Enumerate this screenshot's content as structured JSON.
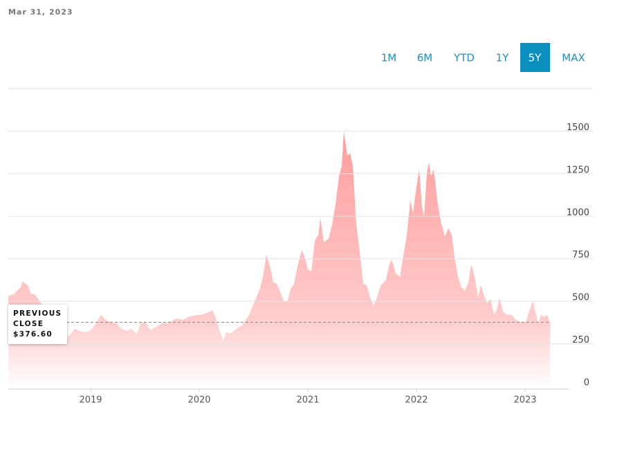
{
  "header": {
    "date": "Mar 31, 2023",
    "ranges": [
      "1M",
      "6M",
      "YTD",
      "1Y",
      "5Y",
      "MAX"
    ],
    "active_range": 4
  },
  "chart_data": {
    "type": "area",
    "color": "#ff9c9c",
    "x": [
      2018.242,
      2018.293,
      2018.357,
      2018.369,
      2018.42,
      2018.452,
      2018.484,
      2018.516,
      2018.548,
      2018.58,
      2018.624,
      2018.675,
      2018.726,
      2018.771,
      2018.803,
      2018.854,
      2018.898,
      2018.943,
      2018.994,
      2019.038,
      2019.096,
      2019.134,
      2019.185,
      2019.236,
      2019.287,
      2019.331,
      2019.376,
      2019.427,
      2019.459,
      2019.503,
      2019.548,
      2019.599,
      2019.662,
      2019.726,
      2019.79,
      2019.854,
      2019.898,
      2019.949,
      2020.013,
      2020.076,
      2020.121,
      2020.153,
      2020.191,
      2020.223,
      2020.248,
      2020.287,
      2020.344,
      2020.395,
      2020.459,
      2020.51,
      2020.554,
      2020.586,
      2020.618,
      2020.65,
      2020.682,
      2020.713,
      2020.745,
      2020.777,
      2020.809,
      2020.841,
      2020.873,
      2020.904,
      2020.943,
      2020.968,
      2021.0,
      2021.032,
      2021.064,
      2021.096,
      2021.115,
      2021.146,
      2021.191,
      2021.223,
      2021.255,
      2021.287,
      2021.312,
      2021.331,
      2021.363,
      2021.389,
      2021.414,
      2021.446,
      2021.478,
      2021.51,
      2021.541,
      2021.573,
      2021.605,
      2021.637,
      2021.669,
      2021.72,
      2021.745,
      2021.771,
      2021.809,
      2021.847,
      2021.873,
      2021.911,
      2021.943,
      2021.968,
      2022.0,
      2022.025,
      2022.051,
      2022.07,
      2022.096,
      2022.115,
      2022.134,
      2022.159,
      2022.191,
      2022.223,
      2022.261,
      2022.293,
      2022.325,
      2022.35,
      2022.382,
      2022.414,
      2022.446,
      2022.478,
      2022.503,
      2022.535,
      2022.567,
      2022.592,
      2022.618,
      2022.65,
      2022.682,
      2022.713,
      2022.739,
      2022.764,
      2022.796,
      2022.834,
      2022.879,
      2022.911,
      2022.955,
      2023.006,
      2023.038,
      2023.07,
      2023.102,
      2023.121,
      2023.146,
      2023.178,
      2023.204,
      2023.229
    ],
    "values": [
      530,
      542,
      583,
      615,
      595,
      542,
      542,
      514,
      481,
      440,
      400,
      367,
      326,
      289,
      298,
      338,
      326,
      318,
      326,
      359,
      420,
      391,
      379,
      371,
      338,
      326,
      338,
      306,
      371,
      379,
      330,
      347,
      371,
      375,
      400,
      391,
      408,
      416,
      420,
      432,
      448,
      400,
      318,
      269,
      318,
      310,
      338,
      359,
      420,
      501,
      563,
      644,
      775,
      705,
      611,
      603,
      554,
      501,
      497,
      571,
      603,
      705,
      799,
      766,
      685,
      677,
      856,
      889,
      991,
      848,
      868,
      950,
      1072,
      1235,
      1296,
      1500,
      1357,
      1370,
      1296,
      950,
      787,
      603,
      595,
      522,
      473,
      522,
      591,
      624,
      705,
      746,
      664,
      644,
      746,
      889,
      1093,
      1019,
      1174,
      1276,
      1052,
      1003,
      1256,
      1317,
      1235,
      1276,
      1093,
      970,
      881,
      930,
      889,
      758,
      644,
      583,
      563,
      611,
      717,
      644,
      522,
      595,
      542,
      489,
      514,
      420,
      448,
      522,
      440,
      420,
      420,
      391,
      379,
      379,
      440,
      501,
      420,
      367,
      420,
      408,
      420,
      379
    ],
    "xlim": [
      2018.242,
      2023.401
    ],
    "xticks": [
      2019,
      2020,
      2021,
      2022,
      2023
    ],
    "ylim": [
      0,
      1750
    ],
    "yticks": [
      0,
      250,
      500,
      750,
      1000,
      1250,
      1500
    ],
    "grid": true,
    "previous_close": {
      "label": "PREVIOUS CLOSE",
      "value": 376.6,
      "value_label": "$376.60"
    }
  }
}
